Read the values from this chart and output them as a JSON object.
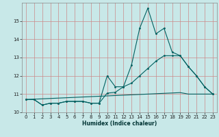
{
  "xlabel": "Humidex (Indice chaleur)",
  "background_color": "#c8e8e8",
  "grid_color_major": "#e8a0a0",
  "grid_color_minor": "#d4d4d4",
  "line_color": "#006060",
  "x_data": [
    0,
    1,
    2,
    3,
    4,
    5,
    6,
    7,
    8,
    9,
    10,
    11,
    12,
    13,
    14,
    15,
    16,
    17,
    18,
    19,
    20,
    21,
    22,
    23
  ],
  "main_line": [
    10.7,
    10.7,
    10.4,
    10.5,
    10.5,
    10.6,
    10.6,
    10.6,
    10.5,
    10.5,
    12.0,
    11.4,
    11.4,
    12.6,
    14.6,
    15.7,
    14.3,
    14.6,
    13.3,
    13.1,
    12.5,
    12.0,
    11.4,
    11.0
  ],
  "line2": [
    10.7,
    10.7,
    10.4,
    10.5,
    10.5,
    10.6,
    10.6,
    10.6,
    10.5,
    10.5,
    11.05,
    11.1,
    11.4,
    11.6,
    12.0,
    12.4,
    12.8,
    13.1,
    13.1,
    13.1,
    12.5,
    12.0,
    11.4,
    11.0
  ],
  "line3": [
    10.7,
    10.72,
    10.74,
    10.76,
    10.78,
    10.8,
    10.82,
    10.84,
    10.86,
    10.88,
    10.9,
    10.92,
    10.94,
    10.96,
    10.98,
    11.0,
    11.02,
    11.04,
    11.06,
    11.08,
    11.0,
    11.0,
    11.0,
    11.0
  ],
  "ylim": [
    10.0,
    16.0
  ],
  "xlim": [
    -0.5,
    23.5
  ],
  "yticks": [
    10,
    11,
    12,
    13,
    14,
    15
  ],
  "xticks": [
    0,
    1,
    2,
    3,
    4,
    5,
    6,
    7,
    8,
    9,
    10,
    11,
    12,
    13,
    14,
    15,
    16,
    17,
    18,
    19,
    20,
    21,
    22,
    23
  ],
  "xlabel_fontsize": 5.5,
  "tick_fontsize": 5.0,
  "linewidth": 0.8,
  "markersize": 2.0
}
